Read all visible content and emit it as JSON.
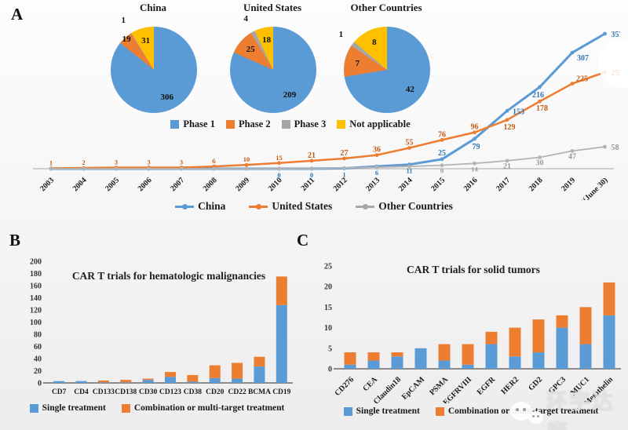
{
  "panels": {
    "a": "A",
    "b": "B",
    "c": "C"
  },
  "colors": {
    "phase1_blue": "#5b9bd5",
    "phase2_orange": "#ed7d31",
    "phase3_gray": "#a6a6a6",
    "not_applicable_yellow": "#ffc000",
    "axis_gray": "#bdbdbd"
  },
  "pie_legend": [
    {
      "label": "Phase 1",
      "color": "#5b9bd5"
    },
    {
      "label": "Phase 2",
      "color": "#ed7d31"
    },
    {
      "label": "Phase 3",
      "color": "#a6a6a6"
    },
    {
      "label": "Not applicable",
      "color": "#ffc000"
    }
  ],
  "line_legend": [
    {
      "label": "China",
      "color": "#5b9bd5"
    },
    {
      "label": "United States",
      "color": "#ed7d31"
    },
    {
      "label": "Other Countries",
      "color": "#a6a6a6"
    }
  ],
  "bar_legend": [
    {
      "label": "Single treatment",
      "color": "#5b9bd5"
    },
    {
      "label": "Combination or multi-target treatment",
      "color": "#ed7d31"
    }
  ],
  "watermark": {
    "text": "环宇达康",
    "icon": "wechat-icon"
  },
  "chart_data": [
    {
      "type": "pie",
      "title": "China",
      "labels": [
        "Phase 1",
        "Phase 2",
        "Phase 3",
        "Not applicable"
      ],
      "values": [
        306,
        19,
        1,
        31
      ],
      "colors": [
        "#5b9bd5",
        "#ed7d31",
        "#a6a6a6",
        "#ffc000"
      ]
    },
    {
      "type": "pie",
      "title": "United States",
      "labels": [
        "Phase 1",
        "Phase 2",
        "Phase 3",
        "Not applicable"
      ],
      "values": [
        209,
        25,
        4,
        18
      ],
      "colors": [
        "#5b9bd5",
        "#ed7d31",
        "#a6a6a6",
        "#ffc000"
      ]
    },
    {
      "type": "pie",
      "title": "Other Countries",
      "labels": [
        "Phase 1",
        "Phase 2",
        "Phase 3",
        "Not applicable"
      ],
      "values": [
        42,
        7,
        1,
        8
      ],
      "colors": [
        "#5b9bd5",
        "#ed7d31",
        "#a6a6a6",
        "#ffc000"
      ]
    },
    {
      "type": "line",
      "x": [
        "2003",
        "2004",
        "2005",
        "2006",
        "2007",
        "2008",
        "2009",
        "2010",
        "2011",
        "2012",
        "2013",
        "2014",
        "2015",
        "2016",
        "2017",
        "2018",
        "2019",
        "2020(June 30)"
      ],
      "ylim": [
        0,
        380
      ],
      "legend_position": "bottom",
      "grid": false,
      "series": [
        {
          "name": "China",
          "color": "#5b9bd5",
          "label_color": "#2e75b6",
          "labels_from": 7,
          "values": [
            0,
            0,
            0,
            0,
            0,
            0,
            0,
            0,
            0,
            1,
            6,
            11,
            25,
            79,
            153,
            216,
            307,
            357
          ]
        },
        {
          "name": "United States",
          "color": "#ed7d31",
          "label_color": "#c55a11",
          "labels_from": 0,
          "values": [
            1,
            2,
            3,
            3,
            3,
            6,
            10,
            15,
            21,
            27,
            36,
            55,
            76,
            96,
            129,
            178,
            225,
            255
          ]
        },
        {
          "name": "Other Countries",
          "color": "#b3b3b3",
          "label_color": "#9a9a9a",
          "labels_from": 12,
          "values": [
            0,
            0,
            0,
            0,
            0,
            0,
            0,
            0,
            0,
            2,
            4,
            6,
            9,
            14,
            21,
            30,
            47,
            58
          ]
        }
      ]
    },
    {
      "type": "bar",
      "stacked": true,
      "title": "CAR T trials for hematologic malignancies",
      "categories": [
        "CD7",
        "CD4",
        "CD133",
        "CD138",
        "CD30",
        "CD123",
        "CD38",
        "CD20",
        "CD22",
        "BCMA",
        "CD19"
      ],
      "ylim": [
        0,
        200
      ],
      "ytick_step": 20,
      "legend_position": "bottom",
      "series": [
        {
          "name": "Single treatment",
          "color": "#5b9bd5",
          "values": [
            3,
            3,
            1,
            1,
            5,
            10,
            2,
            8,
            7,
            27,
            128
          ]
        },
        {
          "name": "Combination or multi-target treatment",
          "color": "#ed7d31",
          "values": [
            0,
            0,
            3,
            4,
            2,
            8,
            11,
            21,
            26,
            16,
            47
          ]
        }
      ]
    },
    {
      "type": "bar",
      "stacked": true,
      "title": "CAR T trials for solid tumors",
      "categories": [
        "CD276",
        "CEA",
        "Claudin18",
        "EpCAM",
        "PSMA",
        "EGFRVIII",
        "EGFR",
        "HER2",
        "GD2",
        "GPC3",
        "MUC1",
        "Mesothelin"
      ],
      "ylim": [
        0,
        25
      ],
      "ytick_step": 5,
      "legend_position": "bottom",
      "series": [
        {
          "name": "Single treatment",
          "color": "#5b9bd5",
          "values": [
            1,
            2,
            3,
            5,
            2,
            1,
            6,
            3,
            4,
            10,
            6,
            13
          ]
        },
        {
          "name": "Combination or multi-target treatment",
          "color": "#ed7d31",
          "values": [
            3,
            2,
            1,
            0,
            4,
            5,
            3,
            7,
            8,
            3,
            9,
            8
          ]
        }
      ]
    }
  ]
}
